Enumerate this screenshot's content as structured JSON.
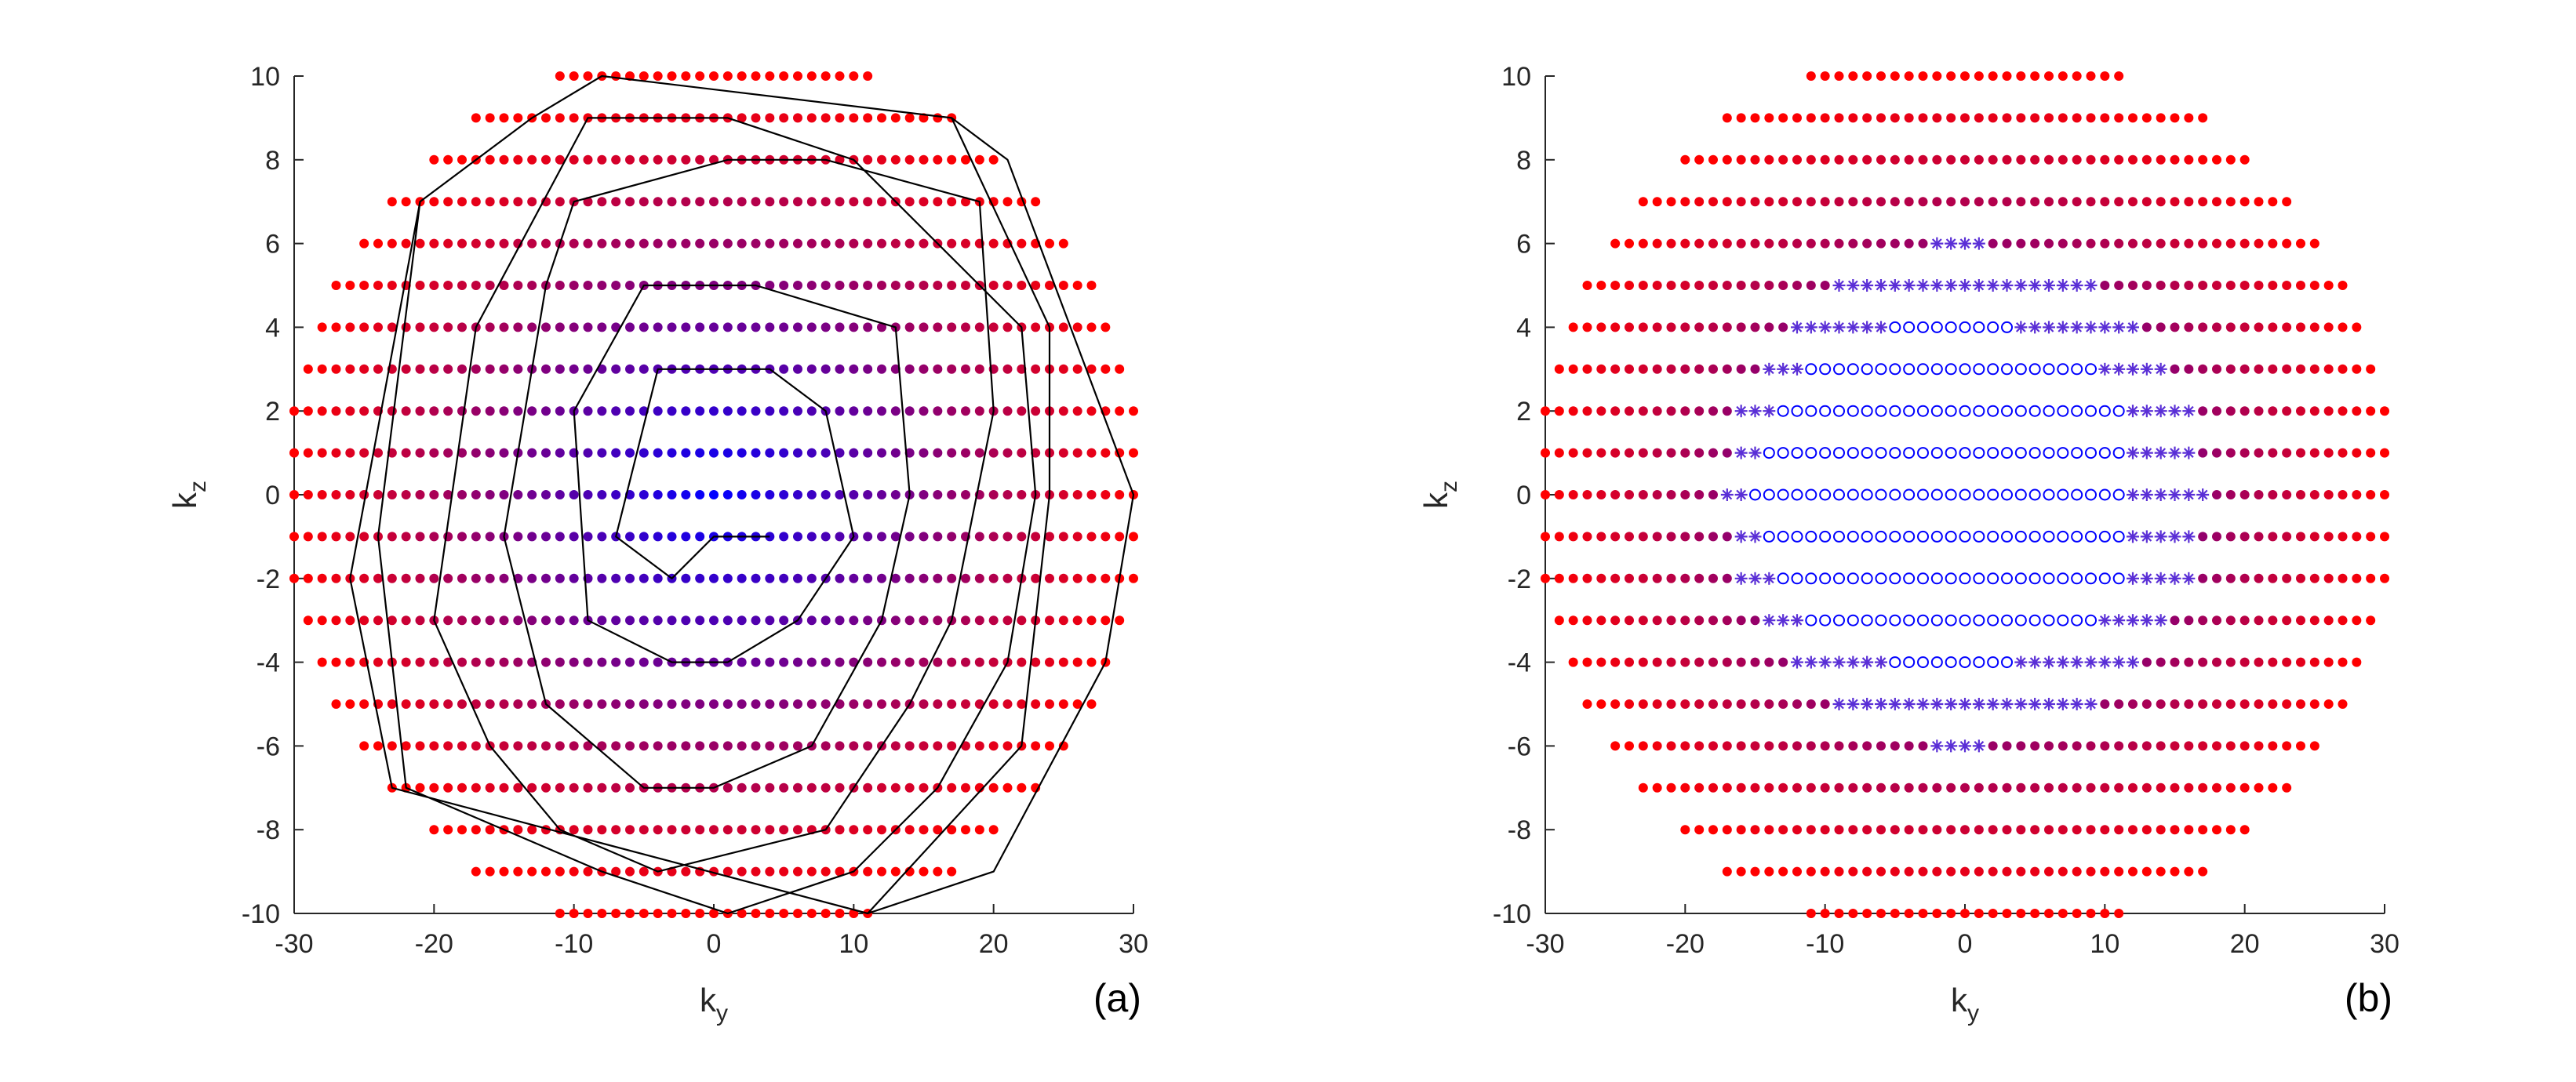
{
  "colors": {
    "outer": "#ff0000",
    "inner": "#0000ff",
    "trajectory": "#000000",
    "axis": "#262626"
  },
  "chart_data": [
    {
      "type": "scatter",
      "panel_label": "(a)",
      "xlabel": "k",
      "xlabel_sub": "y",
      "ylabel": "k",
      "ylabel_sub": "z",
      "xlim": [
        -30,
        30
      ],
      "ylim": [
        -10,
        10
      ],
      "xticks": [
        -30,
        -20,
        -10,
        0,
        10,
        20,
        30
      ],
      "yticks": [
        -10,
        -8,
        -6,
        -4,
        -2,
        0,
        2,
        4,
        6,
        8,
        10
      ],
      "sampling_region": {
        "shape": "ellipse",
        "y_range": [
          -10,
          10
        ],
        "x_step": 1,
        "rows": [
          {
            "y": 10,
            "x_min": -11,
            "x_max": 11
          },
          {
            "y": 9,
            "x_min": -17,
            "x_max": 17
          },
          {
            "y": 8,
            "x_min": -20,
            "x_max": 20
          },
          {
            "y": 7,
            "x_min": -23,
            "x_max": 23
          },
          {
            "y": 6,
            "x_min": -25,
            "x_max": 25
          },
          {
            "y": 5,
            "x_min": -27,
            "x_max": 27
          },
          {
            "y": 4,
            "x_min": -28,
            "x_max": 28
          },
          {
            "y": 3,
            "x_min": -29,
            "x_max": 29
          },
          {
            "y": 2,
            "x_min": -30,
            "x_max": 30
          },
          {
            "y": 1,
            "x_min": -30,
            "x_max": 30
          },
          {
            "y": 0,
            "x_min": -30,
            "x_max": 30
          },
          {
            "y": -1,
            "x_min": -30,
            "x_max": 30
          },
          {
            "y": -2,
            "x_min": -30,
            "x_max": 30
          },
          {
            "y": -3,
            "x_min": -29,
            "x_max": 29
          },
          {
            "y": -4,
            "x_min": -28,
            "x_max": 28
          },
          {
            "y": -5,
            "x_min": -27,
            "x_max": 27
          },
          {
            "y": -6,
            "x_min": -25,
            "x_max": 25
          },
          {
            "y": -7,
            "x_min": -23,
            "x_max": 23
          },
          {
            "y": -8,
            "x_min": -20,
            "x_max": 20
          },
          {
            "y": -9,
            "x_min": -17,
            "x_max": 17
          },
          {
            "y": -10,
            "x_min": -11,
            "x_max": 11
          }
        ],
        "color_gradient": "blue at center to red at edge"
      },
      "trajectory": {
        "type": "spiral",
        "points": [
          [
            4,
            -1
          ],
          [
            0,
            -1
          ],
          [
            -3,
            -2
          ],
          [
            -7,
            -1
          ],
          [
            -4,
            3
          ],
          [
            4,
            3
          ],
          [
            8,
            2
          ],
          [
            10,
            -1
          ],
          [
            6,
            -3
          ],
          [
            1,
            -4
          ],
          [
            -3,
            -4
          ],
          [
            -9,
            -3
          ],
          [
            -10,
            2
          ],
          [
            -5,
            5
          ],
          [
            3,
            5
          ],
          [
            13,
            4
          ],
          [
            14,
            0
          ],
          [
            12,
            -3
          ],
          [
            7,
            -6
          ],
          [
            0,
            -7
          ],
          [
            -5,
            -7
          ],
          [
            -12,
            -5
          ],
          [
            -15,
            -1
          ],
          [
            -12,
            5
          ],
          [
            -10,
            7
          ],
          [
            1,
            8
          ],
          [
            8,
            8
          ],
          [
            19,
            7
          ],
          [
            20,
            2
          ],
          [
            17,
            -3
          ],
          [
            14,
            -5
          ],
          [
            8,
            -8
          ],
          [
            -4,
            -9
          ],
          [
            -11,
            -8
          ],
          [
            -16,
            -6
          ],
          [
            -20,
            -3
          ],
          [
            -17,
            4
          ],
          [
            -9,
            9
          ],
          [
            1,
            9
          ],
          [
            10,
            8
          ],
          [
            22,
            4
          ],
          [
            23,
            0
          ],
          [
            21,
            -4
          ],
          [
            16,
            -7
          ],
          [
            10,
            -9
          ],
          [
            1,
            -10
          ],
          [
            -8,
            -9
          ],
          [
            -22,
            -7
          ],
          [
            -24,
            -1
          ],
          [
            -21,
            7
          ],
          [
            -13,
            9
          ],
          [
            -8,
            10
          ],
          [
            17,
            9
          ],
          [
            24,
            4
          ],
          [
            24,
            0
          ],
          [
            22,
            -6
          ],
          [
            11,
            -10
          ],
          [
            -23,
            -7
          ],
          [
            -26,
            -2
          ],
          [
            -21,
            7
          ],
          [
            -13,
            9
          ],
          [
            -8,
            10
          ],
          [
            17,
            9
          ],
          [
            21,
            8
          ],
          [
            30,
            0
          ],
          [
            28,
            -4
          ],
          [
            20,
            -9
          ],
          [
            11,
            -10
          ]
        ]
      }
    },
    {
      "type": "scatter",
      "panel_label": "(b)",
      "xlabel": "k",
      "xlabel_sub": "y",
      "ylabel": "k",
      "ylabel_sub": "z",
      "xlim": [
        -30,
        30
      ],
      "ylim": [
        -10,
        10
      ],
      "xticks": [
        -30,
        -20,
        -10,
        0,
        10,
        20,
        30
      ],
      "yticks": [
        -10,
        -8,
        -6,
        -4,
        -2,
        0,
        2,
        4,
        6,
        8,
        10
      ],
      "sampling_region": {
        "shape": "ellipse",
        "y_range": [
          -10,
          10
        ],
        "x_step": 1,
        "color_gradient": "blue at center to red at edge"
      },
      "marker_regions": [
        {
          "marker": "circle-open",
          "color": "#0000ff",
          "rows": [
            {
              "y": 4,
              "x_min": -5,
              "x_max": 3
            },
            {
              "y": 3,
              "x_min": -11,
              "x_max": 9
            },
            {
              "y": 2,
              "x_min": -13,
              "x_max": 11
            },
            {
              "y": 1,
              "x_min": -14,
              "x_max": 11
            },
            {
              "y": 0,
              "x_min": -15,
              "x_max": 11
            },
            {
              "y": -1,
              "x_min": -14,
              "x_max": 11
            },
            {
              "y": -2,
              "x_min": -13,
              "x_max": 11
            },
            {
              "y": -3,
              "x_min": -11,
              "x_max": 9
            },
            {
              "y": -4,
              "x_min": -5,
              "x_max": 3
            }
          ]
        },
        {
          "marker": "asterisk",
          "color": "#5a2fd6",
          "rows": [
            {
              "y": 6,
              "x_min": -2,
              "x_max": 1
            },
            {
              "y": 5,
              "x_min": -9,
              "x_max": 9
            },
            {
              "y": 4,
              "x_min": -12,
              "x_max": 12
            },
            {
              "y": 3,
              "x_min": -14,
              "x_max": 14
            },
            {
              "y": 2,
              "x_min": -16,
              "x_max": 16
            },
            {
              "y": 1,
              "x_min": -16,
              "x_max": 16
            },
            {
              "y": 0,
              "x_min": -17,
              "x_max": 17
            },
            {
              "y": -1,
              "x_min": -16,
              "x_max": 16
            },
            {
              "y": -2,
              "x_min": -16,
              "x_max": 16
            },
            {
              "y": -3,
              "x_min": -14,
              "x_max": 14
            },
            {
              "y": -4,
              "x_min": -12,
              "x_max": 12
            },
            {
              "y": -5,
              "x_min": -9,
              "x_max": 9
            },
            {
              "y": -6,
              "x_min": -2,
              "x_max": 1
            }
          ]
        }
      ]
    }
  ]
}
